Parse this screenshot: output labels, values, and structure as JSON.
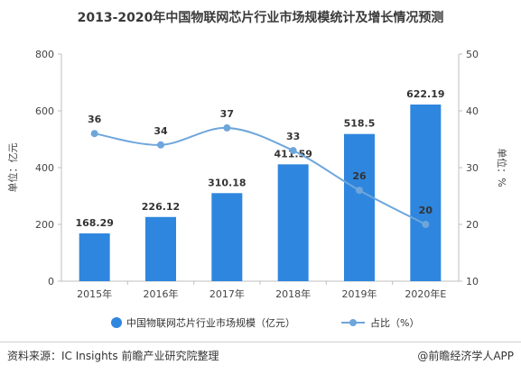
{
  "title": "2013-2020年中国物联网芯片行业市场规模统计及增长情况预测",
  "source": "资料来源：IC Insights 前瞻产业研究院整理",
  "credit": "@前瞻经济学人APP",
  "colors": {
    "bar": "#2f86de",
    "line": "#6ea6dc",
    "axis": "#bfbfbf",
    "text": "#444444"
  },
  "chart_data": {
    "type": "bar",
    "categories": [
      "2015年",
      "2016年",
      "2017年",
      "2018年",
      "2019年",
      "2020年E"
    ],
    "series": [
      {
        "name": "中国物联网芯片行业市场规模（亿元）",
        "type": "bar",
        "axis": "left",
        "values": [
          168.29,
          226.12,
          310.18,
          411.59,
          518.5,
          622.19
        ],
        "labels": [
          "168.29",
          "226.12",
          "310.18",
          "411.59",
          "518.5",
          "622.19"
        ]
      },
      {
        "name": "占比（%）",
        "type": "line",
        "axis": "right",
        "values": [
          36,
          34,
          37,
          33,
          26,
          20
        ],
        "labels": [
          "36",
          "34",
          "37",
          "33",
          "26",
          "20"
        ]
      }
    ],
    "ylabel": "单位：亿元",
    "y2label": "单位：%",
    "ylim": [
      0,
      800
    ],
    "y2lim": [
      10,
      50
    ],
    "yticks": [
      "0",
      "200",
      "400",
      "600",
      "800"
    ],
    "y2ticks": [
      "10",
      "20",
      "30",
      "40",
      "50"
    ],
    "grid": false,
    "legend": "bottom"
  }
}
